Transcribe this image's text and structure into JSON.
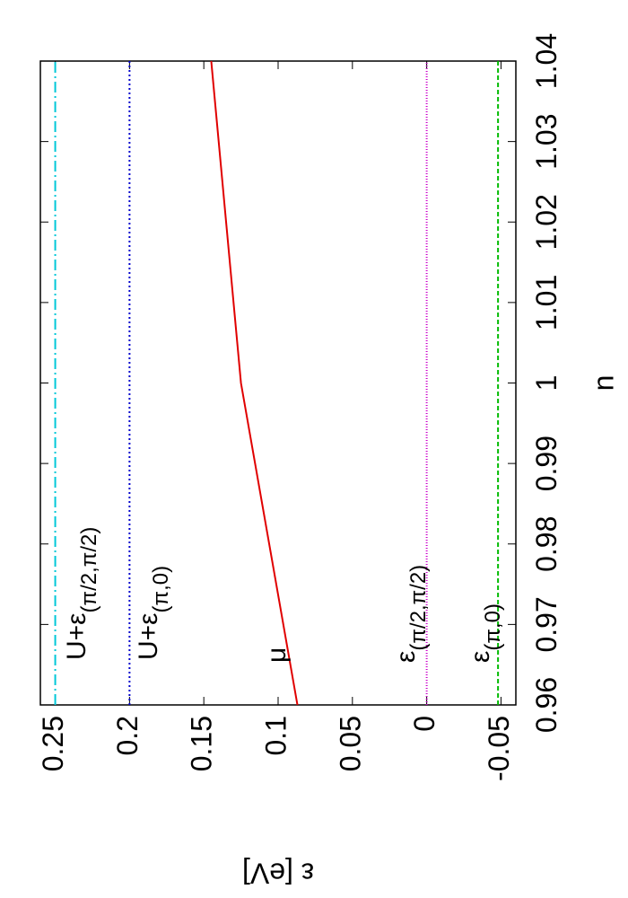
{
  "chart_data": {
    "type": "line",
    "xlabel": "n",
    "ylabel": "ε [eV]",
    "xlim": [
      0.96,
      1.04
    ],
    "xticks": [
      0.96,
      0.97,
      0.98,
      0.99,
      1,
      1.01,
      1.02,
      1.03,
      1.04
    ],
    "ylim": [
      -0.06,
      0.26
    ],
    "yticks": [
      -0.05,
      0,
      0.05,
      0.1,
      0.15,
      0.2,
      0.25
    ],
    "rotation": -90,
    "series": [
      {
        "label": {
          "text": "U+ε",
          "subscript": "(π/2,π/2)"
        },
        "color": "#00c8d8",
        "dash": "12 4 2 4",
        "x": [
          0.96,
          1.04
        ],
        "values": [
          0.25,
          0.25
        ]
      },
      {
        "label": {
          "text": "U+ε",
          "subscript": "(π,0)"
        },
        "color": "#0000cc",
        "dash": "2 3",
        "x": [
          0.96,
          1.04
        ],
        "values": [
          0.2,
          0.2
        ]
      },
      {
        "label": {
          "text": "μ"
        },
        "color": "#e00000",
        "dash": "none",
        "x": [
          0.96,
          1,
          1.04
        ],
        "values": [
          0.087,
          0.125,
          0.145
        ]
      },
      {
        "label": {
          "text": "ε",
          "subscript": "(π/2,π/2)"
        },
        "color": "#cc00cc",
        "dash": "1 2",
        "x": [
          0.96,
          1.04
        ],
        "values": [
          0,
          0
        ]
      },
      {
        "label": {
          "text": "ε",
          "subscript": "(π,0)"
        },
        "color": "#00bb00",
        "dash": "5 3",
        "x": [
          0.96,
          1.04
        ],
        "values": [
          -0.048,
          -0.048
        ]
      }
    ]
  }
}
